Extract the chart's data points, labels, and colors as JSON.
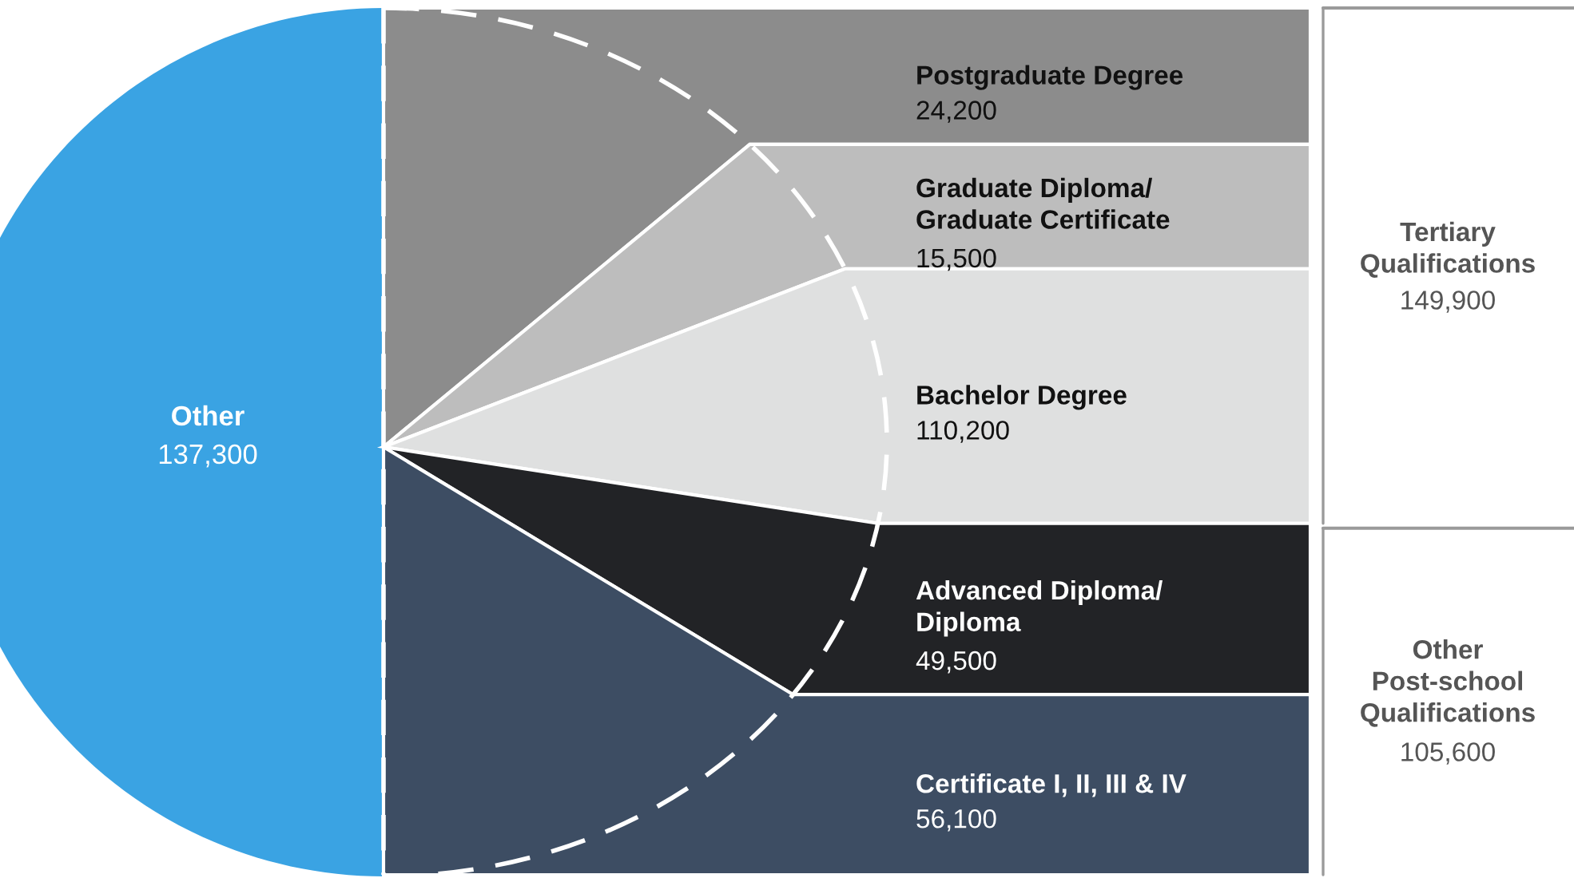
{
  "chart_data": {
    "type": "other",
    "categories": [
      "Other",
      "Postgraduate Degree",
      "Graduate Diploma/\nGraduate Certificate",
      "Bachelor Degree",
      "Advanced Diploma/\nDiploma",
      "Certificate I, II, III & IV"
    ],
    "values": [
      137300,
      24200,
      15500,
      110200,
      49500,
      56100
    ],
    "value_labels": [
      "137,300",
      "24,200",
      "15,500",
      "110,200",
      "49,500",
      "56,100"
    ],
    "colors": [
      "#3aa3e3",
      "#8c8c8c",
      "#bdbdbd",
      "#dfe0e0",
      "#222326",
      "#3d4d63"
    ],
    "annotations": [
      "Tertiary\nQualifications\n149,900",
      "Other\nPost-school\nQualifications\n105,600"
    ]
  }
}
